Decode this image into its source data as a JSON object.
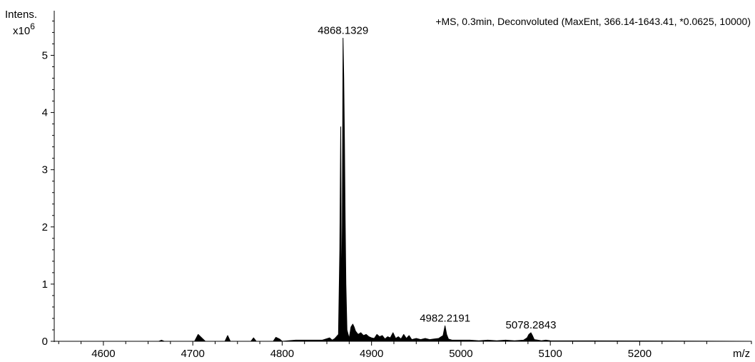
{
  "chart_data": {
    "type": "line",
    "title": "+MS, 0.3min, Deconvoluted (MaxEnt, 366.14-1643.41, *0.0625, 10000)",
    "ylabel": "Intens.",
    "y_multiplier": "x10",
    "y_multiplier_exp": "6",
    "xlabel": "m/z",
    "xlim": [
      4545,
      5325
    ],
    "ylim": [
      0,
      5.78
    ],
    "x_ticks": [
      4600,
      4700,
      4800,
      4900,
      5000,
      5100,
      5200
    ],
    "x_tick_labels": [
      "4600",
      "4700",
      "4800",
      "4900",
      "5000",
      "5100",
      "5200"
    ],
    "y_ticks": [
      0,
      1,
      2,
      3,
      4,
      5
    ],
    "y_tick_labels": [
      "0",
      "1",
      "2",
      "3",
      "4",
      "5"
    ],
    "grid": false,
    "peak_labels": [
      {
        "x": 4868.1329,
        "y": 5.3,
        "label": "4868.1329"
      },
      {
        "x": 4982.2191,
        "y": 0.27,
        "label": "4982.2191"
      },
      {
        "x": 5078.2843,
        "y": 0.15,
        "label": "5078.2843"
      }
    ],
    "series": [
      {
        "x": [
          4545,
          4662,
          4665,
          4668,
          4702,
          4706,
          4710,
          4714,
          4736,
          4739,
          4742,
          4765,
          4768,
          4771,
          4790,
          4793,
          4797,
          4800,
          4815,
          4830,
          4845,
          4853,
          4856,
          4859,
          4863,
          4864.5,
          4865.5,
          4866.5,
          4867.3,
          4868.1,
          4868.9,
          4869.7,
          4870.5,
          4871.3,
          4872.5,
          4875,
          4877,
          4879,
          4880.5,
          4882,
          4885,
          4888,
          4891,
          4894,
          4897,
          4900,
          4903,
          4906,
          4909,
          4912,
          4915,
          4918,
          4921,
          4924,
          4927,
          4930,
          4933,
          4936,
          4939,
          4942,
          4945,
          4950,
          4955,
          4960,
          4965,
          4970,
          4975,
          4978,
          4980,
          4982.2,
          4984,
          4986,
          4990,
          5000,
          5010,
          5020,
          5030,
          5040,
          5050,
          5060,
          5070,
          5074,
          5076,
          5078.3,
          5080,
          5082,
          5086,
          5090,
          5095,
          5100,
          5325
        ],
        "y": [
          0,
          0,
          0.02,
          0,
          0,
          0.12,
          0.06,
          0,
          0,
          0.1,
          0,
          0,
          0.06,
          0,
          0,
          0.07,
          0.04,
          0,
          0.02,
          0.02,
          0.02,
          0.06,
          0.02,
          0.05,
          0.12,
          1.6,
          3.75,
          0.5,
          2.0,
          5.3,
          4.6,
          3.5,
          2.1,
          1.0,
          0.2,
          0.05,
          0.25,
          0.3,
          0.25,
          0.18,
          0.12,
          0.15,
          0.1,
          0.12,
          0.08,
          0.06,
          0.05,
          0.12,
          0.08,
          0.1,
          0.04,
          0.08,
          0.06,
          0.15,
          0.05,
          0.08,
          0.04,
          0.12,
          0.05,
          0.1,
          0.03,
          0.05,
          0.03,
          0.05,
          0.03,
          0.04,
          0.05,
          0.08,
          0.1,
          0.27,
          0.12,
          0.04,
          0.02,
          0.02,
          0.02,
          0.01,
          0.02,
          0.01,
          0.02,
          0.01,
          0.02,
          0.06,
          0.12,
          0.15,
          0.1,
          0.03,
          0.02,
          0.01,
          0.02,
          0.01,
          0
        ]
      }
    ]
  }
}
